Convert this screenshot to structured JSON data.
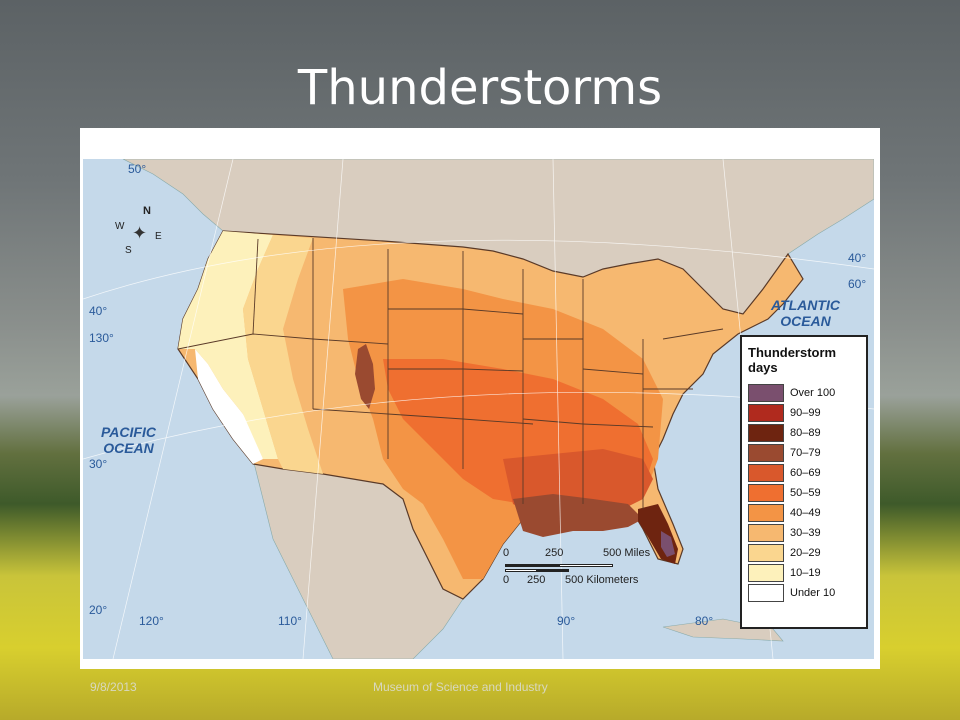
{
  "slide": {
    "title": "Thunderstorms",
    "footer_date": "9/8/2013",
    "footer_center": "Museum of Science and Industry"
  },
  "map": {
    "ocean_labels": {
      "atlantic_line1": "ATLANTIC",
      "atlantic_line2": "OCEAN",
      "pacific_line1": "PACIFIC",
      "pacific_line2": "OCEAN"
    },
    "graticule_labels": [
      "50°",
      "40°",
      "130°",
      "30°",
      "20°",
      "120°",
      "110°",
      "90°",
      "80°",
      "40°",
      "60°"
    ],
    "compass": {
      "n": "N",
      "s": "S",
      "e": "E",
      "w": "W"
    },
    "scale": {
      "miles": [
        "0",
        "250",
        "500 Miles"
      ],
      "kilometers": [
        "0",
        "250",
        "500 Kilometers"
      ]
    },
    "legend": {
      "title_line1": "Thunderstorm",
      "title_line2": "days",
      "classes": [
        {
          "label": "Over 100",
          "color": "#7a4f6e"
        },
        {
          "label": "90–99",
          "color": "#b02a1e"
        },
        {
          "label": "80–89",
          "color": "#6e2410"
        },
        {
          "label": "70–79",
          "color": "#9a4a30"
        },
        {
          "label": "60–69",
          "color": "#d9582c"
        },
        {
          "label": "50–59",
          "color": "#ef6f30"
        },
        {
          "label": "40–49",
          "color": "#f39445"
        },
        {
          "label": "30–39",
          "color": "#f6b870"
        },
        {
          "label": "20–29",
          "color": "#fad68f"
        },
        {
          "label": "10–19",
          "color": "#fdf1bb"
        },
        {
          "label": "Under 10",
          "color": "#ffffff"
        }
      ]
    },
    "colors": {
      "ocean": "#c5d9ea",
      "foreign_land": "#d9cdbf",
      "state_border": "#5a3a28"
    }
  }
}
